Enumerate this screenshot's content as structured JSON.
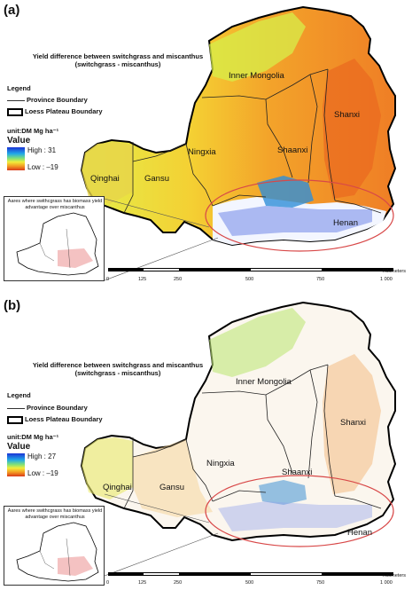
{
  "panels": [
    {
      "letter": "(a)",
      "title_line1": "Yield difference between switchgrass and miscanthus",
      "title_line2": "(switchgrass - miscanthus)",
      "legend_title": "Legend",
      "province_boundary": "Province Boundary",
      "loess_boundary": "Loess Plateau Boundary",
      "unit": "unit:DM Mg ha⁻¹",
      "value_title": "Value",
      "high_label": "High : 31",
      "low_label": "Low : –19",
      "inset_text": "Aares where swithcgrass has biomass yield advantage over miscanthus",
      "provinces": {
        "inner_mongolia": "Inner Mongolia",
        "shanxi": "Shanxi",
        "shaanxi": "Shaanxi",
        "ningxia": "Ningxia",
        "gansu": "Gansu",
        "qinghai": "Qinghai",
        "henan": "Henan"
      }
    },
    {
      "letter": "(b)",
      "title_line1": "Yield difference between switchgrass and miscanthus",
      "title_line2": "(switchgrass - miscanthus)",
      "legend_title": "Legend",
      "province_boundary": "Province Boundary",
      "loess_boundary": "Loess Plateau Boundary",
      "unit": "unit:DM Mg ha⁻¹",
      "value_title": "Value",
      "high_label": "High : 27",
      "low_label": "Low : –19",
      "inset_text": "Aares where swithcgrass has biomass yield advantage over miscanthus",
      "provinces": {
        "inner_mongolia": "Inner Mongolia",
        "shanxi": "Shanxi",
        "shaanxi": "Shaanxi",
        "ningxia": "Ningxia",
        "gansu": "Gansu",
        "qinghai": "Qinghai",
        "henan": "Henan"
      }
    }
  ],
  "scale_bar": {
    "unit": "Kilometers",
    "ticks": [
      "0",
      "125",
      "250",
      "500",
      "750",
      "1 000"
    ]
  },
  "colors": {
    "high": "#1a33d6",
    "mid": "#f2ee3a",
    "low": "#d93a1a",
    "highlight_ellipse": "#d84848"
  }
}
